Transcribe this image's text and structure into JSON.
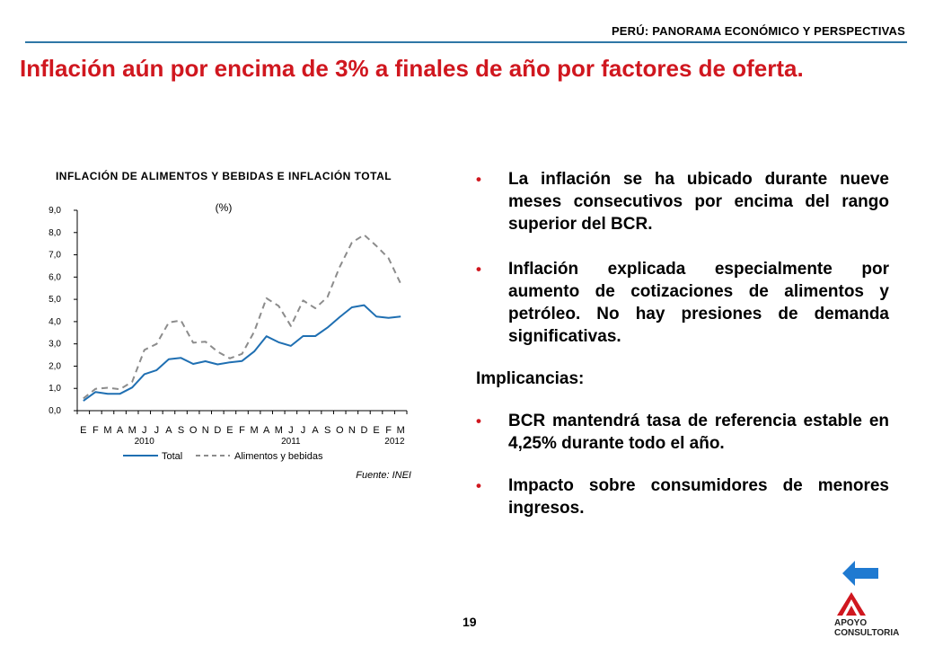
{
  "header": {
    "title": "PERÚ: PANORAMA ECONÓMICO Y PERSPECTIVAS"
  },
  "slide": {
    "title": "Inflación aún por encima de 3% a finales de año por factores de oferta."
  },
  "chart_data": {
    "type": "line",
    "title": "INFLACIÓN DE ALIMENTOS Y BEBIDAS E INFLACIÓN TOTAL",
    "unit": "(%)",
    "x": [
      "E",
      "F",
      "M",
      "A",
      "M",
      "J",
      "J",
      "A",
      "S",
      "O",
      "N",
      "D",
      "E",
      "F",
      "M",
      "A",
      "M",
      "J",
      "J",
      "A",
      "S",
      "O",
      "N",
      "D",
      "E",
      "F",
      "M"
    ],
    "year_labels": [
      {
        "label": "2010",
        "month_index": 5
      },
      {
        "label": "2011",
        "month_index": 17
      },
      {
        "label": "2012",
        "month_index": 25.5
      }
    ],
    "y_ticks": [
      "0,0",
      "1,0",
      "2,0",
      "3,0",
      "4,0",
      "5,0",
      "6,0",
      "7,0",
      "8,0",
      "9,0"
    ],
    "ylim": [
      0,
      9
    ],
    "series": [
      {
        "name": "Total",
        "style": "solid",
        "color": "#1f6fb2",
        "values": [
          0.44,
          0.84,
          0.76,
          0.76,
          1.04,
          1.64,
          1.82,
          2.31,
          2.37,
          2.1,
          2.22,
          2.08,
          2.17,
          2.23,
          2.66,
          3.34,
          3.07,
          2.91,
          3.35,
          3.35,
          3.73,
          4.2,
          4.64,
          4.74,
          4.23,
          4.17,
          4.23
        ]
      },
      {
        "name": "Alimentos y bebidas",
        "style": "dashed",
        "color": "#8c8c8c",
        "values": [
          0.55,
          0.98,
          1.03,
          0.96,
          1.3,
          2.73,
          3.0,
          3.96,
          4.05,
          3.05,
          3.1,
          2.65,
          2.35,
          2.55,
          3.55,
          5.05,
          4.7,
          3.8,
          4.95,
          4.6,
          5.1,
          6.45,
          7.55,
          7.9,
          7.4,
          6.85,
          5.7
        ]
      }
    ],
    "source": "Fuente: INEI",
    "grid": false,
    "legend": "bottom"
  },
  "bullets": {
    "items": [
      "La inflación se ha ubicado durante nueve meses consecutivos por encima del rango superior del BCR.",
      "Inflación explicada especialmente por aumento de cotizaciones de alimentos y petróleo. No hay presiones de demanda significativas."
    ],
    "implicancias_heading": "Implicancias:",
    "implicancias": [
      "BCR mantendrá tasa de referencia estable en 4,25% durante todo el año.",
      "Impacto sobre consumidores de menores ingresos."
    ]
  },
  "footer": {
    "page_number": "19",
    "logo_line1": "APOYO",
    "logo_line2": "CONSULTORIA",
    "nav_icon": "left-arrow-icon",
    "accent_color": "#d0171f",
    "nav_color": "#1f7ad1"
  }
}
